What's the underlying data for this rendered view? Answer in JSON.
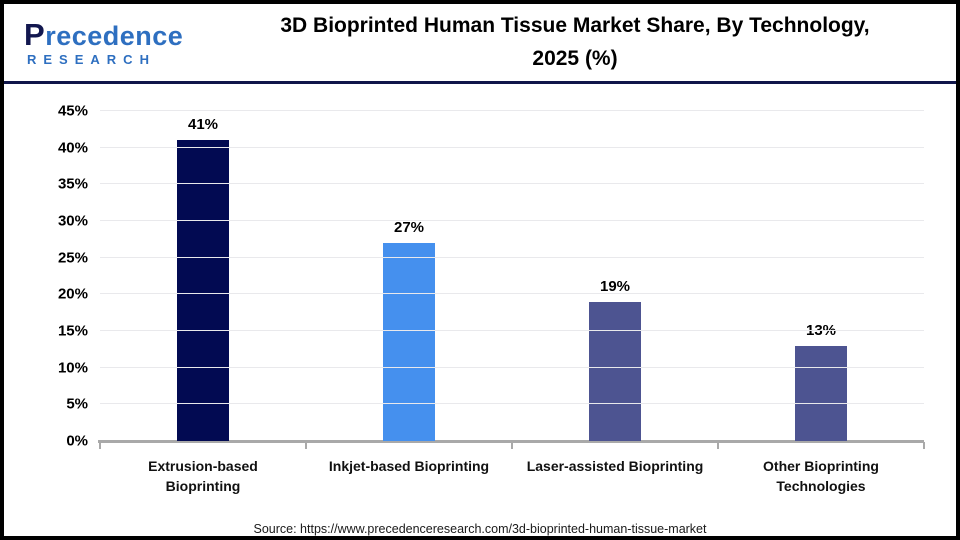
{
  "header": {
    "logo": {
      "initial": "P",
      "rest": "recedence",
      "sub": "RESEARCH"
    },
    "title_line1": "3D Bioprinted Human Tissue Market Share, By Technology,",
    "title_line2": "2025 (%)"
  },
  "chart_data": {
    "type": "bar",
    "title": "3D Bioprinted Human Tissue Market Share, By Technology, 2025 (%)",
    "categories": [
      "Extrusion-based Bioprinting",
      "Inkjet-based Bioprinting",
      "Laser-assisted Bioprinting",
      "Other Bioprinting Technologies"
    ],
    "values": [
      41,
      27,
      19,
      13
    ],
    "value_labels": [
      "41%",
      "27%",
      "19%",
      "13%"
    ],
    "bar_colors": [
      "#020a52",
      "#4590ee",
      "#4d5491",
      "#4d5491"
    ],
    "xtick_lines": [
      [
        "Extrusion-based",
        "Bioprinting"
      ],
      [
        "Inkjet-based Bioprinting"
      ],
      [
        "Laser-assisted Bioprinting"
      ],
      [
        "Other Bioprinting",
        "Technologies"
      ]
    ],
    "ylim": [
      0,
      45
    ],
    "ytick_step": 5,
    "ytick_labels": [
      "0%",
      "5%",
      "10%",
      "15%",
      "20%",
      "25%",
      "30%",
      "35%",
      "40%",
      "45%"
    ],
    "grid": true,
    "legend": "none",
    "xlabel": "",
    "ylabel": ""
  },
  "footer": {
    "source": "Source: https://www.precedenceresearch.com/3d-bioprinted-human-tissue-market"
  },
  "colors": {
    "header_divider_navy": "#10164a",
    "axis_gray": "#a9a9a9",
    "grid_gray": "#e9e9ec",
    "logo_navy": "#12174f",
    "logo_blue": "#2e6fc0",
    "border_black": "#000000"
  }
}
